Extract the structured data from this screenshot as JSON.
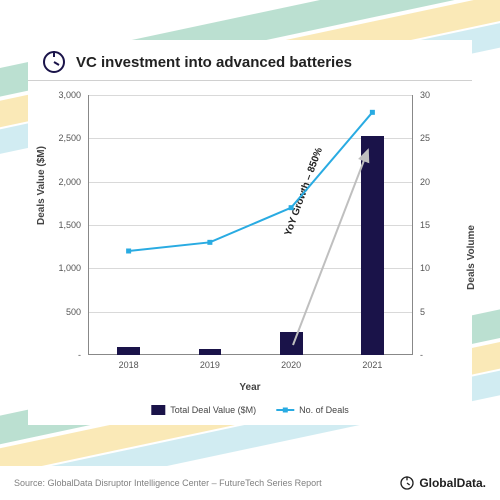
{
  "chart": {
    "type": "bar+line",
    "title": "VC investment into advanced batteries",
    "title_fontsize": 15,
    "title_color": "#222222",
    "background_color": "#ffffff",
    "grid_color": "#d9d9d9",
    "axis_color": "#888888",
    "label_color": "#555555",
    "label_fontsize": 9,
    "categories": [
      "2018",
      "2019",
      "2020",
      "2021"
    ],
    "x_title": "Year",
    "left_axis": {
      "title": "Deals Value ($M)",
      "min": 0,
      "max": 3000,
      "ticks": [
        0,
        500,
        1000,
        1500,
        2000,
        2500,
        3000
      ],
      "tick_labels": [
        "-",
        "500",
        "1,000",
        "1,500",
        "2,000",
        "2,500",
        "3,000"
      ]
    },
    "right_axis": {
      "title": "Deals Volume",
      "min": 0,
      "max": 30,
      "ticks": [
        0,
        5,
        10,
        15,
        20,
        25,
        30
      ],
      "tick_labels": [
        "-",
        "5",
        "10",
        "15",
        "20",
        "25",
        "30"
      ]
    },
    "bars": {
      "series_name": "Total Deal Value ($M)",
      "values": [
        90,
        70,
        270,
        2530
      ],
      "color": "#1a1349",
      "width_fraction": 0.28
    },
    "line": {
      "series_name": "No. of Deals",
      "values": [
        12,
        13,
        17,
        28
      ],
      "color": "#29abe2",
      "line_width": 2,
      "marker_size": 5
    },
    "annotation": {
      "text": "YoY Growth – 850%",
      "arrow_color": "#bfbfbf",
      "text_color": "#222222"
    },
    "legend": {
      "bar_label": "Total Deal Value ($M)",
      "line_label": "No. of Deals"
    }
  },
  "footer": {
    "source": "Source: GlobalData Disruptor Intelligence Center – FutureTech Series Report",
    "logo_text": "GlobalData.",
    "logo_color": "#202020"
  },
  "decor": {
    "stripe_colors": [
      "#78c2a4",
      "#f5d470",
      "#a4d9e6"
    ]
  }
}
